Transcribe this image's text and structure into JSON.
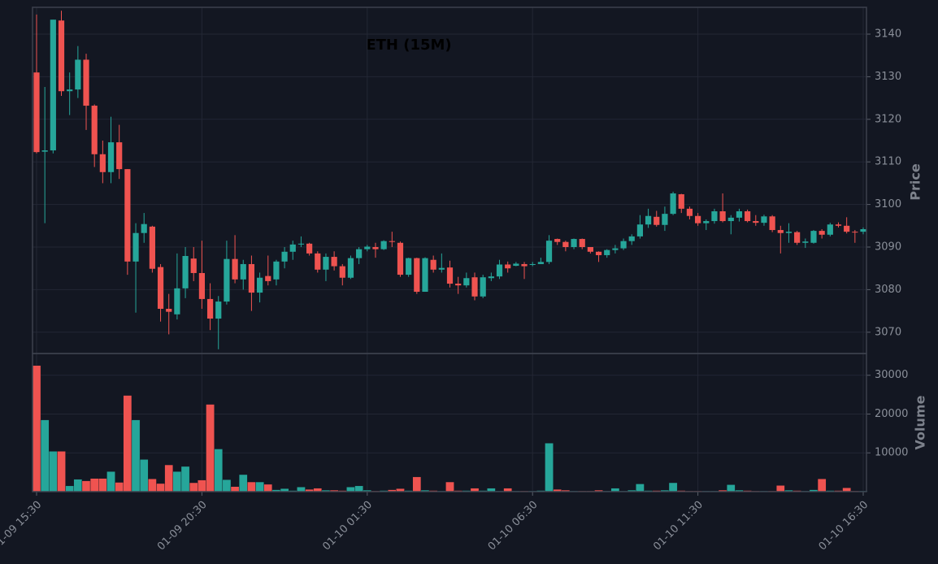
{
  "chart_data": {
    "type": "candlestick",
    "title": "ETH (15M)",
    "ylabel": "Price",
    "volume_ylabel": "Volume",
    "up_color": "#26a69a",
    "down_color": "#ef5350",
    "grid": true,
    "categories": [
      "01-09 15:30",
      null,
      null,
      null,
      null,
      null,
      null,
      null,
      null,
      null,
      null,
      null,
      null,
      null,
      null,
      null,
      null,
      null,
      null,
      null,
      "01-09 20:30",
      null,
      null,
      null,
      null,
      null,
      null,
      null,
      null,
      null,
      null,
      null,
      null,
      null,
      null,
      null,
      null,
      null,
      null,
      null,
      "01-10 01:30",
      null,
      null,
      null,
      null,
      null,
      null,
      null,
      null,
      null,
      null,
      null,
      null,
      null,
      null,
      null,
      null,
      null,
      null,
      null,
      "01-10 06:30",
      null,
      null,
      null,
      null,
      null,
      null,
      null,
      null,
      null,
      null,
      null,
      null,
      null,
      null,
      null,
      null,
      null,
      null,
      null,
      "01-10 11:30",
      null,
      null,
      null,
      null,
      null,
      null,
      null,
      null,
      null,
      null,
      null,
      null,
      null,
      null,
      null,
      null,
      null,
      null,
      null,
      "01-10 16:30"
    ],
    "open": [
      3131.0,
      3112.4,
      3112.7,
      3143.2,
      3126.6,
      3127.0,
      3134.0,
      3123.2,
      3111.8,
      3107.6,
      3114.6,
      3108.3,
      3086.6,
      3093.3,
      3094.8,
      3085.3,
      3075.5,
      3074.2,
      3080.3,
      3087.3,
      3083.9,
      3077.8,
      3073.2,
      3077.2,
      3087.2,
      3082.4,
      3086.0,
      3079.3,
      3083.2,
      3082.4,
      3086.6,
      3088.9,
      3090.6,
      3090.8,
      3088.5,
      3084.7,
      3087.7,
      3085.5,
      3082.8,
      3087.4,
      3089.5,
      3090.0,
      3089.5,
      3091.4,
      3091.0,
      3083.5,
      3087.4,
      3079.5,
      3087.0,
      3084.7,
      3085.2,
      3081.4,
      3081.0,
      3082.9,
      3078.4,
      3082.7,
      3083.1,
      3085.9,
      3085.6,
      3086.0,
      3085.8,
      3086.0,
      3086.5,
      3091.9,
      3091.2,
      3090.0,
      3091.9,
      3090.0,
      3088.9,
      3088.1,
      3089.3,
      3089.7,
      3091.4,
      3092.5,
      3095.3,
      3097.1,
      3095.2,
      3097.8,
      3102.4,
      3099.0,
      3097.3,
      3095.6,
      3096.1,
      3098.4,
      3096.1,
      3096.9,
      3098.4,
      3096.1,
      3095.7,
      3097.2,
      3094.0,
      3093.3,
      3093.5,
      3091.0,
      3091.0,
      3093.8,
      3092.9,
      3095.3,
      3095.0,
      3093.6,
      3093.6
    ],
    "high": [
      3144.6,
      3127.6,
      3143.4,
      3145.5,
      3131.0,
      3137.2,
      3135.4,
      3123.5,
      3115.0,
      3120.6,
      3118.7,
      3108.3,
      3095.6,
      3098.0,
      3095.0,
      3086.0,
      3079.0,
      3088.5,
      3090.0,
      3090.0,
      3091.5,
      3081.5,
      3078.5,
      3091.5,
      3092.8,
      3087.0,
      3088.0,
      3084.0,
      3088.0,
      3087.0,
      3090.0,
      3091.5,
      3092.5,
      3091.0,
      3089.0,
      3088.5,
      3089.0,
      3086.0,
      3088.0,
      3090.0,
      3090.5,
      3091.0,
      3091.6,
      3093.6,
      3091.3,
      3087.5,
      3087.5,
      3087.6,
      3088.0,
      3088.5,
      3086.8,
      3083.0,
      3084.0,
      3084.0,
      3083.5,
      3084.0,
      3087.0,
      3086.6,
      3086.5,
      3086.5,
      3086.5,
      3087.5,
      3092.8,
      3092.0,
      3091.5,
      3092.0,
      3092.0,
      3090.0,
      3089.0,
      3089.5,
      3090.5,
      3092.0,
      3093.0,
      3097.5,
      3099.0,
      3098.5,
      3099.5,
      3103.0,
      3102.5,
      3099.5,
      3098.0,
      3096.5,
      3099.0,
      3102.6,
      3097.5,
      3099.0,
      3098.8,
      3097.5,
      3097.6,
      3097.5,
      3095.0,
      3095.6,
      3093.8,
      3092.0,
      3094.0,
      3094.2,
      3095.7,
      3095.8,
      3097.0,
      3094.0,
      3094.6
    ],
    "low": [
      3112.0,
      3095.6,
      3112.0,
      3125.5,
      3121.0,
      3125.0,
      3117.5,
      3108.8,
      3105.0,
      3105.0,
      3106.0,
      3083.5,
      3074.6,
      3091.0,
      3084.0,
      3072.5,
      3069.5,
      3073.0,
      3078.0,
      3082.0,
      3075.5,
      3070.5,
      3066.0,
      3076.5,
      3081.5,
      3080.0,
      3075.0,
      3077.0,
      3081.0,
      3081.0,
      3085.0,
      3087.0,
      3090.0,
      3088.0,
      3084.0,
      3082.0,
      3084.5,
      3081.0,
      3082.5,
      3086.0,
      3089.0,
      3087.5,
      3089.3,
      3090.0,
      3083.0,
      3083.0,
      3079.0,
      3079.5,
      3084.0,
      3084.0,
      3080.5,
      3079.0,
      3080.5,
      3077.5,
      3078.0,
      3082.0,
      3082.5,
      3084.0,
      3085.5,
      3082.5,
      3085.5,
      3086.0,
      3086.0,
      3090.5,
      3089.0,
      3089.5,
      3089.5,
      3088.5,
      3086.5,
      3087.5,
      3088.5,
      3089.3,
      3090.5,
      3092.0,
      3094.5,
      3094.8,
      3093.8,
      3097.5,
      3098.0,
      3096.5,
      3095.0,
      3094.0,
      3095.5,
      3095.8,
      3093.0,
      3096.0,
      3095.8,
      3095.0,
      3095.0,
      3093.5,
      3088.5,
      3091.0,
      3090.5,
      3089.8,
      3090.8,
      3092.0,
      3092.5,
      3094.6,
      3093.2,
      3091.0,
      3093.0
    ],
    "close": [
      3112.3,
      3112.7,
      3143.4,
      3126.6,
      3127.0,
      3134.0,
      3123.2,
      3111.8,
      3107.6,
      3114.6,
      3108.3,
      3086.6,
      3093.3,
      3095.4,
      3084.9,
      3075.5,
      3074.8,
      3080.3,
      3087.9,
      3083.9,
      3077.8,
      3073.2,
      3077.2,
      3087.2,
      3082.4,
      3086.0,
      3079.3,
      3082.8,
      3082.0,
      3086.6,
      3088.9,
      3090.6,
      3090.8,
      3088.5,
      3084.7,
      3087.7,
      3085.5,
      3082.8,
      3087.4,
      3089.5,
      3090.1,
      3089.5,
      3091.4,
      3091.2,
      3083.5,
      3087.4,
      3079.5,
      3087.4,
      3084.7,
      3085.1,
      3081.4,
      3081.0,
      3082.7,
      3078.4,
      3082.9,
      3083.1,
      3085.9,
      3085.0,
      3086.1,
      3085.5,
      3086.0,
      3086.5,
      3091.5,
      3091.2,
      3090.0,
      3091.9,
      3090.0,
      3088.9,
      3088.1,
      3089.3,
      3089.7,
      3091.4,
      3092.5,
      3095.3,
      3097.3,
      3095.2,
      3097.8,
      3102.6,
      3099.0,
      3097.3,
      3095.6,
      3096.1,
      3098.4,
      3096.1,
      3096.9,
      3098.4,
      3096.1,
      3095.7,
      3097.2,
      3094.0,
      3093.3,
      3093.6,
      3091.0,
      3091.3,
      3093.8,
      3092.9,
      3095.3,
      3095.0,
      3093.6,
      3093.5,
      3094.2
    ],
    "volume": [
      32500,
      18500,
      10400,
      10400,
      1500,
      3200,
      2800,
      3400,
      3400,
      5200,
      2400,
      24800,
      18500,
      8300,
      3300,
      2100,
      6900,
      5200,
      6500,
      2300,
      3000,
      22500,
      11000,
      3100,
      1300,
      4400,
      2500,
      2500,
      1900,
      500,
      800,
      300,
      1200,
      600,
      900,
      400,
      400,
      300,
      1200,
      1500,
      400,
      200,
      300,
      500,
      800,
      300,
      3800,
      400,
      300,
      200,
      2500,
      300,
      300,
      900,
      300,
      900,
      200,
      900,
      200,
      200,
      200,
      300,
      12500,
      600,
      400,
      200,
      200,
      200,
      400,
      200,
      900,
      200,
      400,
      2000,
      300,
      300,
      400,
      2300,
      300,
      200,
      200,
      200,
      200,
      400,
      1800,
      400,
      300,
      200,
      200,
      200,
      1600,
      400,
      300,
      200,
      500,
      3300,
      300,
      300,
      1000,
      200,
      200
    ],
    "ylim": [
      3065.0,
      3146.3
    ],
    "yticks": [
      3070,
      3080,
      3090,
      3100,
      3110,
      3120,
      3130,
      3140
    ],
    "volume_ylim": [
      0,
      35600
    ],
    "volume_yticks": [
      10000,
      20000,
      30000
    ]
  }
}
